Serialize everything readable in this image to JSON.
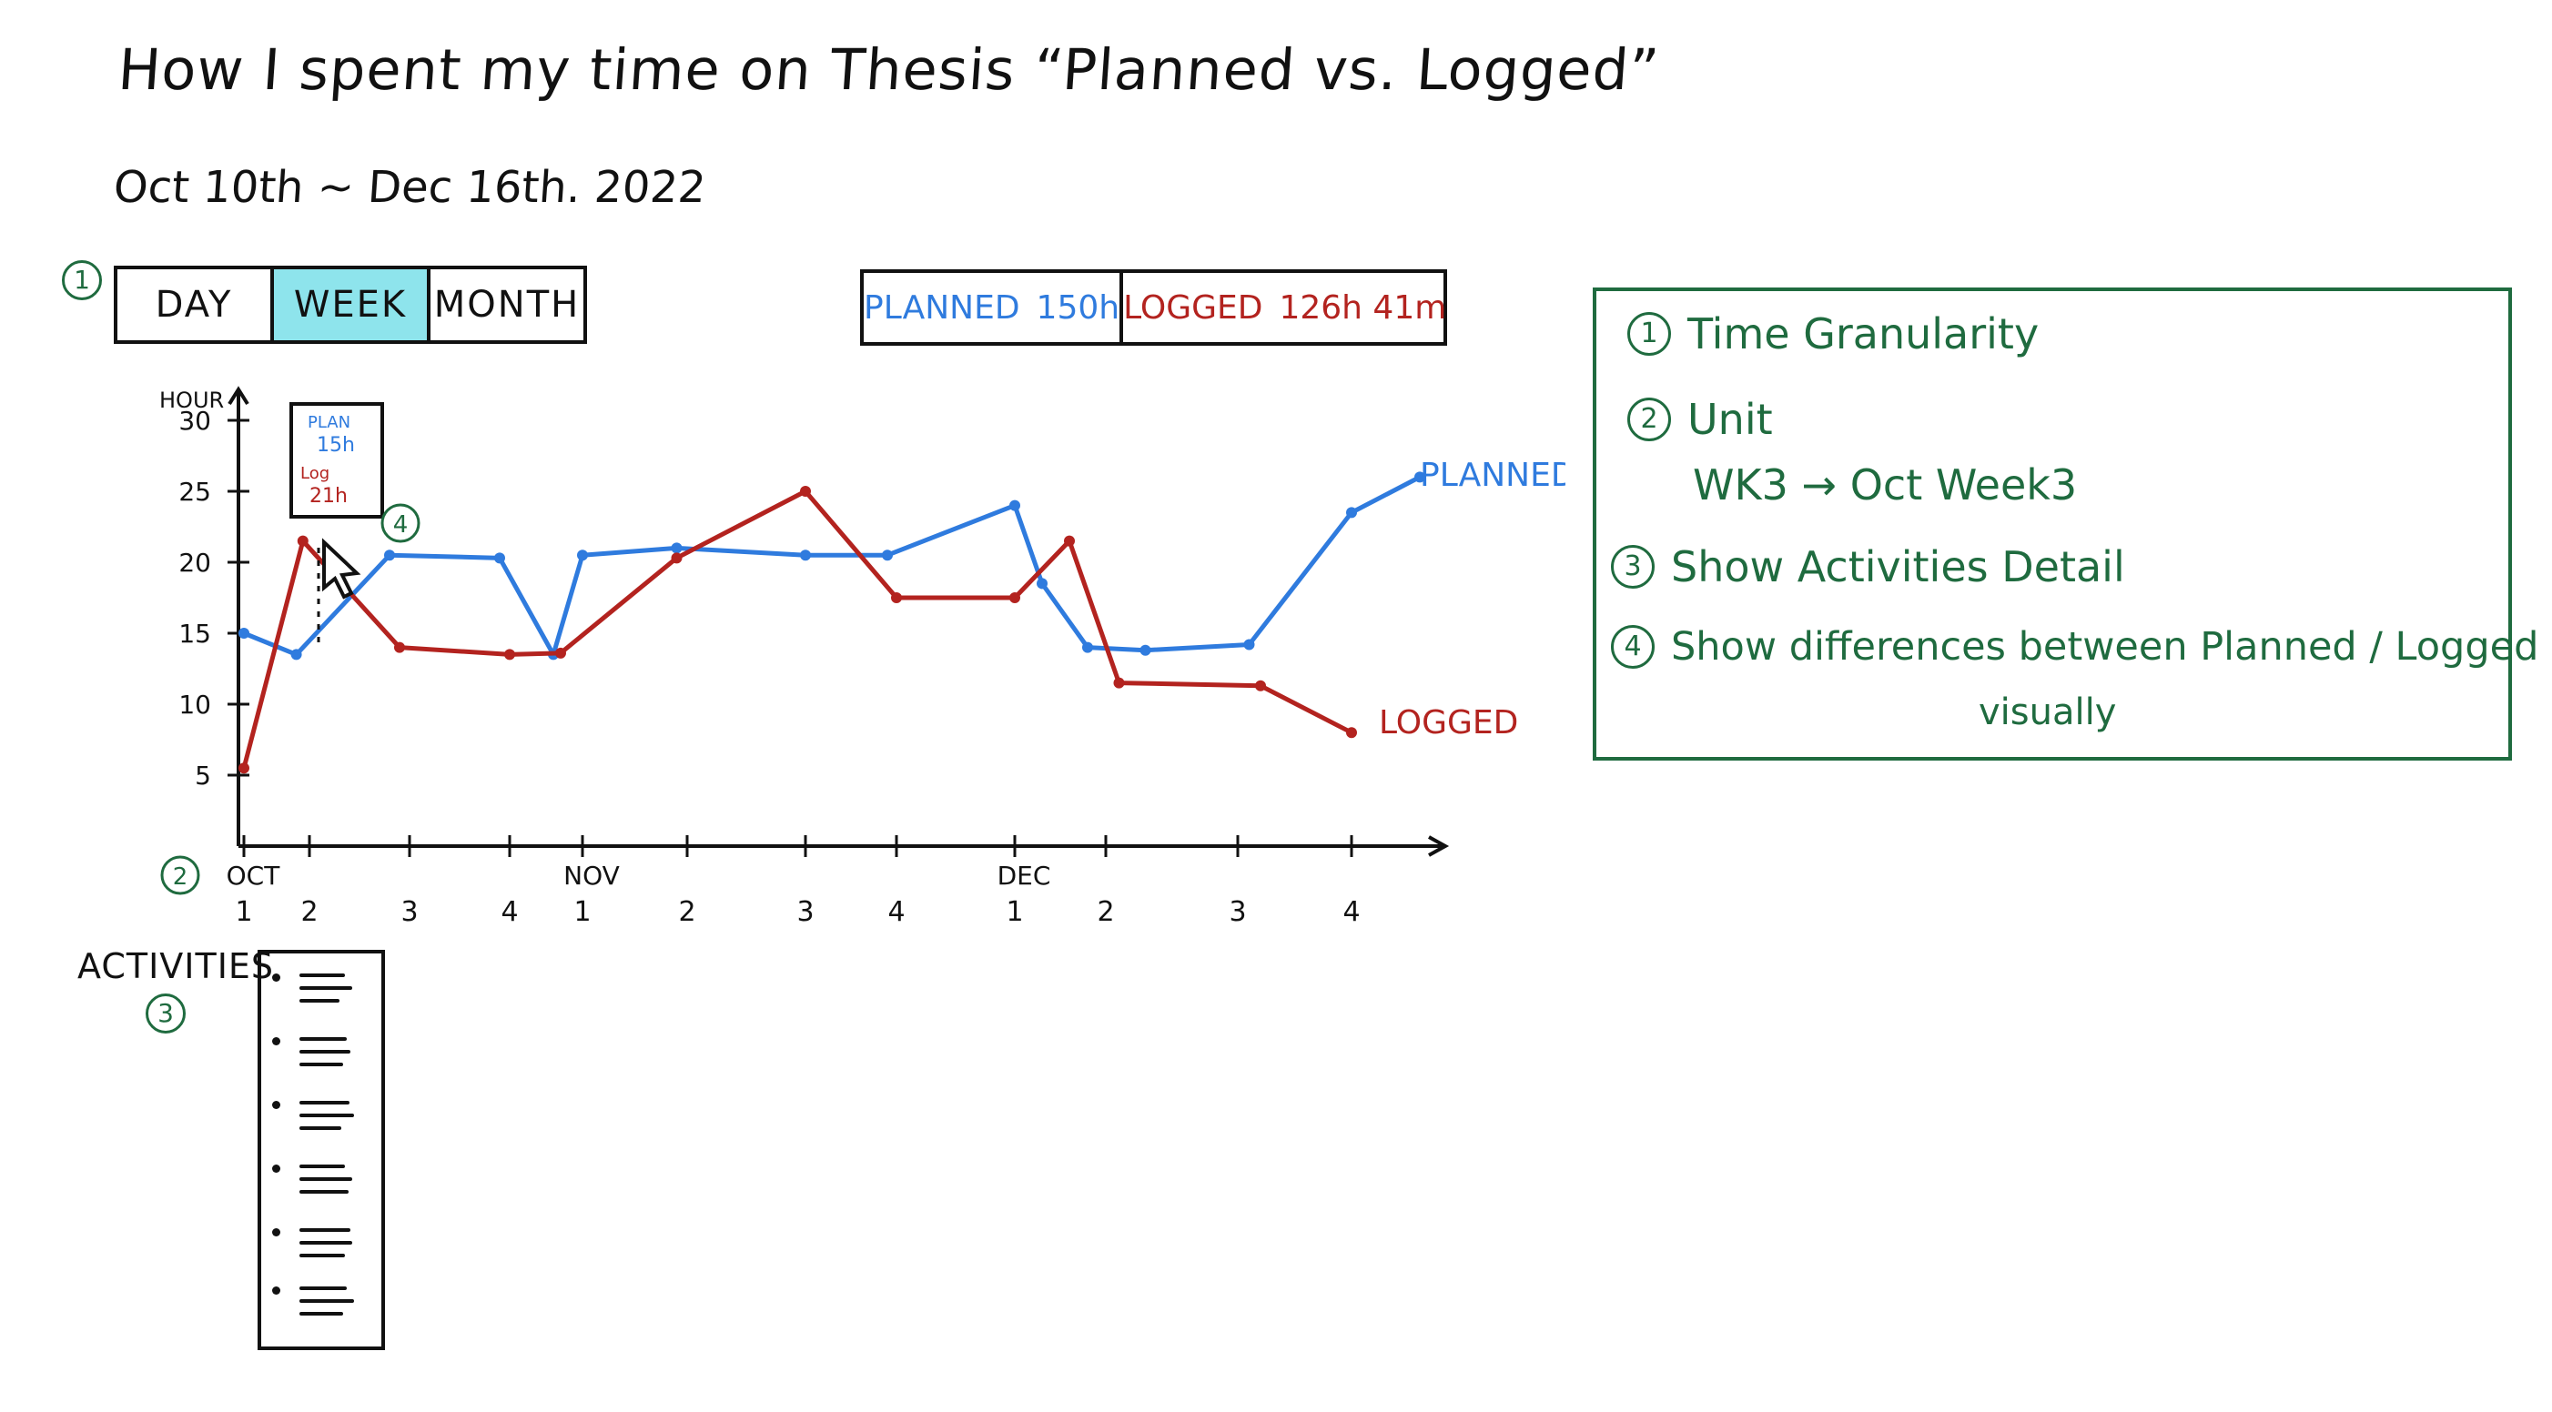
{
  "header": {
    "title": "How I spent my time on Thesis “Planned vs. Logged”",
    "date_range": "Oct 10th ~ Dec 16th. 2022"
  },
  "granularity": {
    "marker": "1",
    "options": [
      "DAY",
      "WEEK",
      "MONTH"
    ],
    "selected": "WEEK"
  },
  "totals": {
    "planned_label": "PLANNED",
    "planned_value": "150h",
    "logged_label": "LOGGED",
    "logged_value": "126h 41m"
  },
  "tooltip": {
    "planned_label": "PLAN",
    "planned_value": "15h",
    "logged_label": "Log",
    "logged_value": "21h"
  },
  "markers": {
    "unit": "2",
    "activities": "3",
    "differences": "4"
  },
  "activities": {
    "label": "ACTIVITIES",
    "items": 6
  },
  "notes": [
    {
      "num": "1",
      "text": "Time Granularity"
    },
    {
      "num": "2",
      "text": "Unit"
    },
    {
      "num": "",
      "text": "WK3 → Oct Week3"
    },
    {
      "num": "3",
      "text": "Show Activities Detail"
    },
    {
      "num": "4",
      "text": "Show differences between Planned / Logged"
    },
    {
      "num": "",
      "text": "visually"
    }
  ],
  "colors": {
    "planned": "#2f7bde",
    "logged": "#b3231f",
    "annotation": "#1f6b3f",
    "selected_tab": "#8ee4ec"
  },
  "chart_data": {
    "type": "line",
    "ylabel": "HOUR",
    "ylim": [
      0,
      30
    ],
    "yticks": [
      5,
      10,
      15,
      20,
      25,
      30
    ],
    "x_ticks": [
      {
        "month": "OCT",
        "week": "1"
      },
      {
        "month": "",
        "week": "2"
      },
      {
        "month": "",
        "week": "3"
      },
      {
        "month": "",
        "week": "4"
      },
      {
        "month": "NOV",
        "week": "1"
      },
      {
        "month": "",
        "week": "2"
      },
      {
        "month": "",
        "week": "3"
      },
      {
        "month": "",
        "week": "4"
      },
      {
        "month": "DEC",
        "week": "1"
      },
      {
        "month": "",
        "week": "2"
      },
      {
        "month": "",
        "week": "3"
      },
      {
        "month": "",
        "week": "4"
      }
    ],
    "x_positions": [
      0,
      1,
      2,
      3,
      4,
      5,
      6,
      7,
      8,
      9,
      10,
      11
    ],
    "series": [
      {
        "name": "PLANNED",
        "color": "#2f7bde",
        "points": [
          [
            0,
            15
          ],
          [
            0.8,
            13.5
          ],
          [
            1.8,
            20.5
          ],
          [
            2.9,
            20.3
          ],
          [
            3.6,
            13.5
          ],
          [
            4.0,
            20.5
          ],
          [
            4.9,
            21
          ],
          [
            6.0,
            20.5
          ],
          [
            6.9,
            20.5
          ],
          [
            8.0,
            24
          ],
          [
            8.3,
            18.5
          ],
          [
            8.8,
            14
          ],
          [
            9.3,
            13.8
          ],
          [
            10.1,
            14.2
          ],
          [
            11.0,
            23.5
          ],
          [
            11.6,
            26
          ]
        ]
      },
      {
        "name": "LOGGED",
        "color": "#b3231f",
        "points": [
          [
            0,
            5.5
          ],
          [
            0.9,
            21.5
          ],
          [
            1.9,
            14
          ],
          [
            3.0,
            13.5
          ],
          [
            3.7,
            13.6
          ],
          [
            4.9,
            20.3
          ],
          [
            6.0,
            25
          ],
          [
            7.0,
            17.5
          ],
          [
            8.0,
            17.5
          ],
          [
            8.6,
            21.5
          ],
          [
            9.1,
            11.5
          ],
          [
            10.2,
            11.3
          ],
          [
            11.0,
            8
          ]
        ]
      }
    ]
  }
}
